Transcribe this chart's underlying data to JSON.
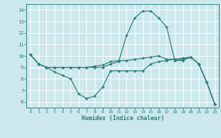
{
  "xlabel": "Humidex (Indice chaleur)",
  "bg_color": "#cce8ec",
  "line_color": "#2d7d7d",
  "grid_color": "#ffffff",
  "xlim": [
    -0.5,
    23.5
  ],
  "ylim": [
    5.5,
    14.5
  ],
  "yticks": [
    6,
    7,
    8,
    9,
    10,
    11,
    12,
    13,
    14
  ],
  "xticks": [
    0,
    1,
    2,
    3,
    4,
    5,
    6,
    7,
    8,
    9,
    10,
    11,
    12,
    13,
    14,
    15,
    16,
    17,
    18,
    19,
    20,
    21,
    22,
    23
  ],
  "line1_x": [
    0,
    1,
    2,
    3,
    4,
    5,
    6,
    7,
    8,
    9,
    10,
    11,
    12,
    13,
    14,
    15,
    16,
    17,
    18,
    19,
    20,
    21,
    22,
    23
  ],
  "line1_y": [
    10.1,
    9.3,
    9.0,
    9.0,
    9.0,
    9.0,
    9.0,
    9.0,
    9.0,
    9.0,
    9.3,
    9.5,
    11.8,
    13.3,
    13.9,
    13.9,
    13.3,
    12.5,
    9.6,
    9.6,
    9.9,
    9.3,
    7.7,
    5.8
  ],
  "line2_x": [
    0,
    1,
    2,
    3,
    4,
    5,
    6,
    7,
    8,
    9,
    10,
    11,
    12,
    13,
    14,
    15,
    16,
    17,
    18,
    19,
    20,
    21,
    22,
    23
  ],
  "line2_y": [
    10.1,
    9.3,
    9.0,
    8.6,
    8.3,
    8.0,
    6.7,
    6.3,
    6.5,
    7.3,
    8.7,
    8.7,
    8.7,
    8.7,
    8.7,
    9.3,
    9.5,
    9.6,
    9.7,
    9.8,
    9.9,
    9.3,
    7.7,
    5.8
  ],
  "line3_x": [
    0,
    1,
    2,
    3,
    4,
    5,
    6,
    7,
    8,
    9,
    10,
    11,
    12,
    13,
    14,
    15,
    16,
    17,
    18,
    19,
    20,
    21,
    22,
    23
  ],
  "line3_y": [
    10.1,
    9.3,
    9.0,
    9.0,
    9.0,
    9.0,
    9.0,
    9.0,
    9.1,
    9.2,
    9.5,
    9.6,
    9.6,
    9.7,
    9.8,
    9.9,
    10.0,
    9.7,
    9.7,
    9.7,
    9.9,
    9.3,
    7.7,
    5.8
  ]
}
